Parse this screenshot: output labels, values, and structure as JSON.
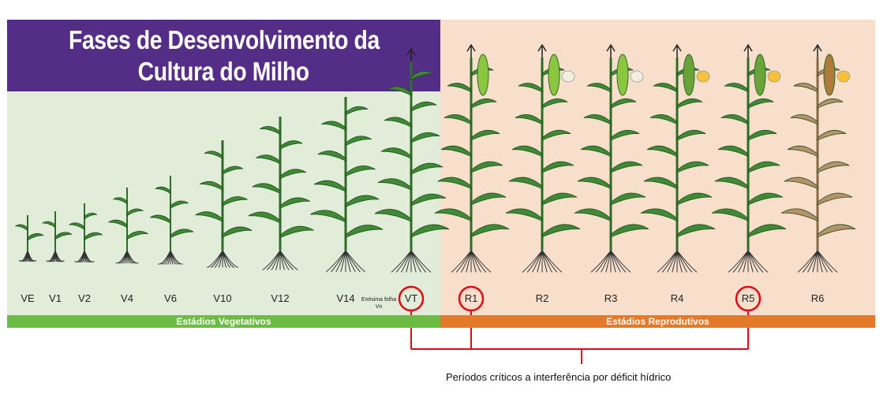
{
  "title": {
    "line1": "Fases de Desenvolvimento da",
    "line2": "Cultura do Milho"
  },
  "stages": [
    {
      "label": "VE",
      "phase": "vegetative",
      "critical": false
    },
    {
      "label": "V1",
      "phase": "vegetative",
      "critical": false
    },
    {
      "label": "V2",
      "phase": "vegetative",
      "critical": false
    },
    {
      "label": "V4",
      "phase": "vegetative",
      "critical": false
    },
    {
      "label": "V6",
      "phase": "vegetative",
      "critical": false
    },
    {
      "label": "V10",
      "phase": "vegetative",
      "critical": false
    },
    {
      "label": "V12",
      "phase": "vegetative",
      "critical": false
    },
    {
      "label": "V14",
      "phase": "vegetative",
      "critical": false
    },
    {
      "label": "VT",
      "phase": "vegetative",
      "critical": true
    },
    {
      "label": "R1",
      "phase": "reproductive",
      "critical": true
    },
    {
      "label": "R2",
      "phase": "reproductive",
      "critical": false
    },
    {
      "label": "R3",
      "phase": "reproductive",
      "critical": false
    },
    {
      "label": "R4",
      "phase": "reproductive",
      "critical": false
    },
    {
      "label": "R5",
      "phase": "reproductive",
      "critical": true
    },
    {
      "label": "R6",
      "phase": "reproductive",
      "critical": false
    }
  ],
  "nth_leaf_label": {
    "line1": "Enésima folha",
    "line2": "Vn"
  },
  "bands": {
    "vegetative": "Estádios Vegetativos",
    "reproductive": "Estádios Reprodutivos"
  },
  "critical_caption": "Períodos críticos a interferência por déficit hídrico",
  "colors": {
    "title_bg": "#542d86",
    "vegetative_bg": "#e1ecd9",
    "reproductive_bg": "#f8dfcc",
    "vegetative_band": "#6cbc44",
    "reproductive_band": "#e5792a",
    "critical_marker": "#e30613",
    "leaf_green": "#3e8a35",
    "dry_leaf": "#b5926a"
  }
}
